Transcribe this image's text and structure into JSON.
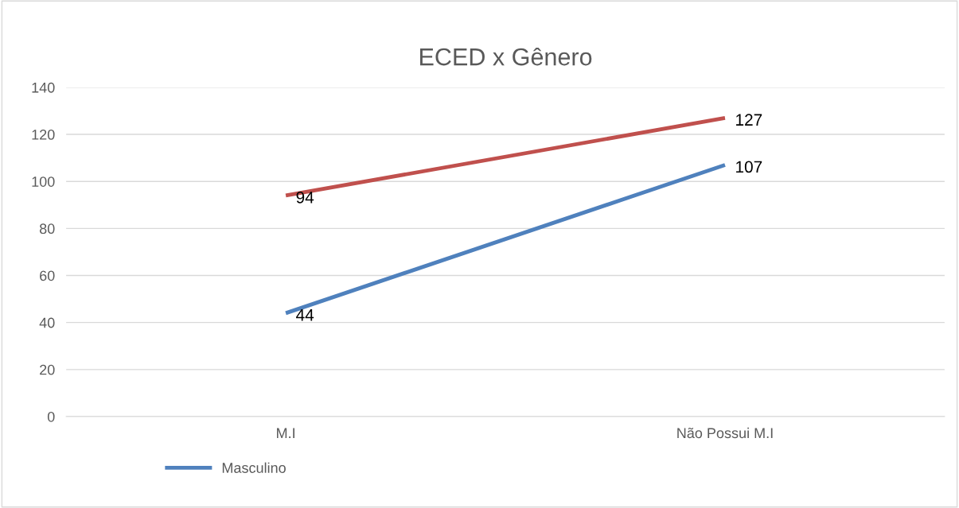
{
  "chart_data": {
    "type": "line",
    "title": "ECED x Gênero",
    "categories": [
      "M.I",
      "Não Possui M.I"
    ],
    "series": [
      {
        "name": "Masculino",
        "color": "#4f81bd",
        "values": [
          44,
          107
        ]
      },
      {
        "color": "#c0504d",
        "values": [
          94,
          127
        ]
      }
    ],
    "ylim": [
      0,
      140
    ],
    "yticks": [
      0,
      20,
      40,
      60,
      80,
      100,
      120,
      140
    ],
    "grid": "y",
    "legend": "bottom left",
    "data_labels": true,
    "marker": "none",
    "line_style": "solid"
  }
}
